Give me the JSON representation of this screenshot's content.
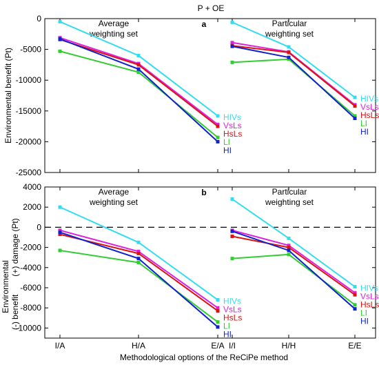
{
  "title": "P + OE",
  "xlabel": "Methodological options of the ReCiPe method",
  "x_tick_labels": [
    "I/A",
    "H/A",
    "E/A",
    "I/I",
    "H/H",
    "E/E"
  ],
  "colors": {
    "HIVs": "#33ddee",
    "VsLs": "#dd22dd",
    "HsLs": "#dd1111",
    "LI": "#33cc33",
    "HI": "#1122cc"
  },
  "chart_data": [
    {
      "type": "line",
      "panel_label": "a",
      "ylabel": "Environmental benefit (Pt)",
      "ylim": [
        -25000,
        0
      ],
      "y_ticks": [
        0,
        -5000,
        -10000,
        -15000,
        -20000,
        -25000
      ],
      "y_tick_labels": [
        "0",
        "-5000",
        "-10000",
        "-15000",
        "-20000",
        "-25000"
      ],
      "groups": [
        {
          "label": "Average\nweighting set",
          "x_indices": [
            0,
            1,
            2
          ],
          "series": [
            {
              "name": "HIVs",
              "values": [
                -500,
                -6000,
                -15800
              ]
            },
            {
              "name": "VsLs",
              "values": [
                -3100,
                -7300,
                -17200
              ]
            },
            {
              "name": "HsLs",
              "values": [
                -3400,
                -7500,
                -17500
              ]
            },
            {
              "name": "LI",
              "values": [
                -5300,
                -8700,
                -19300
              ]
            },
            {
              "name": "HI",
              "values": [
                -3300,
                -8200,
                -20000
              ]
            }
          ]
        },
        {
          "label": "Particular\nweighting set",
          "x_indices": [
            3,
            4,
            5
          ],
          "series": [
            {
              "name": "HIVs",
              "values": [
                -600,
                -4600,
                -12800
              ]
            },
            {
              "name": "VsLs",
              "values": [
                -3900,
                -5400,
                -14000
              ]
            },
            {
              "name": "HsLs",
              "values": [
                -4400,
                -5500,
                -14200
              ]
            },
            {
              "name": "LI",
              "values": [
                -7100,
                -6600,
                -15800
              ]
            },
            {
              "name": "HI",
              "values": [
                -4500,
                -6300,
                -16200
              ]
            }
          ]
        }
      ]
    },
    {
      "type": "line",
      "panel_label": "b",
      "ylabel_line1": "Environmental",
      "ylabel_line2": "(-) benefit",
      "ylabel_line3": "(+) damage (Pt)",
      "ylim": [
        -11000,
        4000
      ],
      "y_ticks": [
        4000,
        2000,
        0,
        -2000,
        -4000,
        -6000,
        -8000,
        -10000
      ],
      "y_tick_labels": [
        "4000",
        "2000",
        "0",
        "-2000",
        "-4000",
        "-6000",
        "-8000",
        "-10000"
      ],
      "zero_line": "dashed",
      "groups": [
        {
          "label": "Average\nweighting set",
          "x_indices": [
            0,
            1,
            2
          ],
          "series": [
            {
              "name": "HIVs",
              "values": [
                2000,
                -1500,
                -7200
              ]
            },
            {
              "name": "VsLs",
              "values": [
                -300,
                -2400,
                -8000
              ]
            },
            {
              "name": "HsLs",
              "values": [
                -700,
                -2600,
                -8300
              ]
            },
            {
              "name": "LI",
              "values": [
                -2300,
                -3500,
                -9400
              ]
            },
            {
              "name": "HI",
              "values": [
                -500,
                -3100,
                -9900
              ]
            }
          ]
        },
        {
          "label": "Particular\nweighting set",
          "x_indices": [
            3,
            4,
            5
          ],
          "series": [
            {
              "name": "HIVs",
              "values": [
                2800,
                -1100,
                -5900
              ]
            },
            {
              "name": "VsLs",
              "values": [
                -300,
                -1800,
                -6500
              ]
            },
            {
              "name": "HsLs",
              "values": [
                -900,
                -2000,
                -6700
              ]
            },
            {
              "name": "LI",
              "values": [
                -3100,
                -2700,
                -7700
              ]
            },
            {
              "name": "HI",
              "values": [
                -400,
                -2300,
                -8100
              ]
            }
          ]
        }
      ]
    }
  ]
}
